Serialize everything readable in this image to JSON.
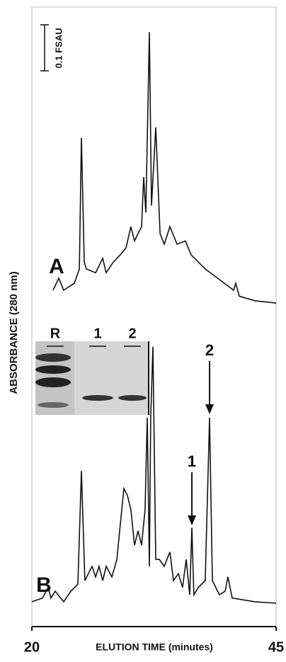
{
  "chart_data": {
    "type": "line",
    "x_label": "ELUTION TIME (minutes)",
    "y_label": "ABSORBANCE (280 nm)",
    "xlim": [
      20,
      45
    ],
    "xticks": [
      20,
      45
    ],
    "ylim": [
      0,
      1.34
    ],
    "scale_bar": {
      "value": 0.1,
      "label": "0.1 FSAU"
    },
    "series": [
      {
        "name": "A",
        "color": "#111111",
        "x": [
          22.17,
          22.75,
          23.26,
          24.35,
          24.86,
          25.07,
          25.36,
          25.58,
          26.52,
          27.25,
          27.61,
          28.33,
          29.06,
          29.64,
          30.14,
          30.51,
          30.87,
          31.23,
          31.45,
          31.67,
          32.03,
          32.25,
          32.68,
          33.12,
          33.55,
          34.13,
          34.86,
          35.72,
          36.3,
          37.75,
          39.2,
          40.65,
          40.87,
          41.23,
          42.83,
          45
        ],
        "values": [
          0.731,
          0.757,
          0.731,
          0.746,
          0.777,
          1.062,
          0.792,
          0.777,
          0.769,
          0.8,
          0.769,
          0.792,
          0.808,
          0.823,
          0.869,
          0.838,
          0.854,
          0.869,
          0.977,
          0.9,
          1.292,
          0.915,
          1.085,
          0.854,
          0.831,
          0.869,
          0.831,
          0.838,
          0.808,
          0.777,
          0.754,
          0.731,
          0.746,
          0.718,
          0.708,
          0.703
        ]
      },
      {
        "name": "B",
        "color": "#111111",
        "x": [
          20,
          21.09,
          21.67,
          21.96,
          22.39,
          22.68,
          23.26,
          23.99,
          24.71,
          25.07,
          25.43,
          26.16,
          26.52,
          26.88,
          27.25,
          27.61,
          28.19,
          28.7,
          29.06,
          29.42,
          29.78,
          30.14,
          30.51,
          30.87,
          31.23,
          31.59,
          31.81,
          32.03,
          32.17,
          32.39,
          32.68,
          33.04,
          33.55,
          34.13,
          34.49,
          35,
          35.43,
          35.8,
          36.16,
          36.38,
          36.59,
          37.03,
          37.75,
          38.19,
          38.48,
          39.2,
          39.78,
          40.07,
          40.51,
          42.83,
          45
        ],
        "values": [
          0.054,
          0.062,
          0.085,
          0.062,
          0.077,
          0.069,
          0.054,
          0.077,
          0.092,
          0.338,
          0.1,
          0.131,
          0.108,
          0.131,
          0.1,
          0.131,
          0.108,
          0.146,
          0.223,
          0.3,
          0.285,
          0.254,
          0.177,
          0.208,
          0.177,
          0.254,
          0.454,
          0.131,
          0.454,
          0.608,
          0.146,
          0.146,
          0.131,
          0.162,
          0.1,
          0.115,
          0.085,
          0.146,
          0.069,
          0.215,
          0.069,
          0.085,
          0.1,
          0.454,
          0.1,
          0.069,
          0.077,
          0.108,
          0.062,
          0.054,
          0.051
        ]
      }
    ],
    "annotations": [
      {
        "text": "1",
        "x": 36.38
      },
      {
        "text": "2",
        "x": 38.19
      }
    ],
    "inset_lanes": [
      "R",
      "1",
      "2"
    ]
  }
}
